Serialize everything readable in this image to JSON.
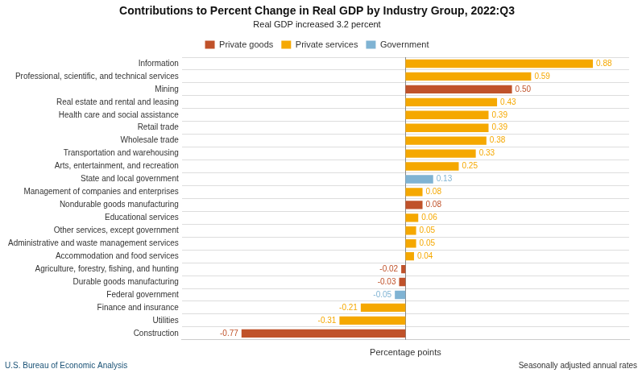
{
  "chart_data": {
    "type": "bar",
    "orientation": "horizontal",
    "title": "Contributions to Percent Change in Real GDP by Industry Group, 2022:Q3",
    "subtitle": "Real GDP increased 3.2 percent",
    "xlabel": "Percentage points",
    "annotations": [
      "U.S. Bureau of Economic Analysis",
      "Seasonally adjusted annual rates"
    ],
    "categories": [
      "Information",
      "Professional, scientific, and technical services",
      "Mining",
      "Real estate and rental and leasing",
      "Health care and social assistance",
      "Retail trade",
      "Wholesale trade",
      "Transportation and warehousing",
      "Arts, entertainment, and recreation",
      "State and local government",
      "Management of companies and enterprises",
      "Nondurable goods manufacturing",
      "Educational services",
      "Other services, except government",
      "Administrative and waste management services",
      "Accommodation and food services",
      "Agriculture, forestry, fishing, and hunting",
      "Durable goods manufacturing",
      "Federal government",
      "Finance and insurance",
      "Utilities",
      "Construction"
    ],
    "series": [
      {
        "name": "Private goods",
        "color": "#c0522a",
        "values": [
          null,
          null,
          0.5,
          null,
          null,
          null,
          null,
          null,
          null,
          null,
          null,
          0.08,
          null,
          null,
          null,
          null,
          -0.02,
          -0.03,
          null,
          null,
          null,
          -0.77
        ],
        "value_labels": [
          null,
          null,
          "0.50",
          null,
          null,
          null,
          null,
          null,
          null,
          null,
          null,
          "0.08",
          null,
          null,
          null,
          null,
          "-0.02",
          "-0.03",
          null,
          null,
          null,
          "-0.77"
        ]
      },
      {
        "name": "Private services",
        "color": "#f5a800",
        "values": [
          0.88,
          0.59,
          null,
          0.43,
          0.39,
          0.39,
          0.38,
          0.33,
          0.25,
          null,
          0.08,
          null,
          0.06,
          0.05,
          0.05,
          0.04,
          null,
          null,
          null,
          -0.21,
          -0.31,
          null
        ],
        "value_labels": [
          "0.88",
          "0.59",
          null,
          "0.43",
          "0.39",
          "0.39",
          "0.38",
          "0.33",
          "0.25",
          null,
          "0.08",
          null,
          "0.06",
          "0.05",
          "0.05",
          "0.04",
          null,
          null,
          null,
          "-0.21",
          "-0.31",
          null
        ]
      },
      {
        "name": "Government",
        "color": "#7fb3d3",
        "values": [
          null,
          null,
          null,
          null,
          null,
          null,
          null,
          null,
          null,
          0.13,
          null,
          null,
          null,
          null,
          null,
          null,
          null,
          null,
          -0.05,
          null,
          null,
          null
        ],
        "value_labels": [
          null,
          null,
          null,
          null,
          null,
          null,
          null,
          null,
          null,
          "0.13",
          null,
          null,
          null,
          null,
          null,
          null,
          null,
          null,
          "-0.05",
          null,
          null,
          null
        ]
      }
    ],
    "xlim": [
      -1.05,
      1.05
    ],
    "grid": true,
    "legend": "top",
    "data_labels": true,
    "tick_labels": "y"
  }
}
